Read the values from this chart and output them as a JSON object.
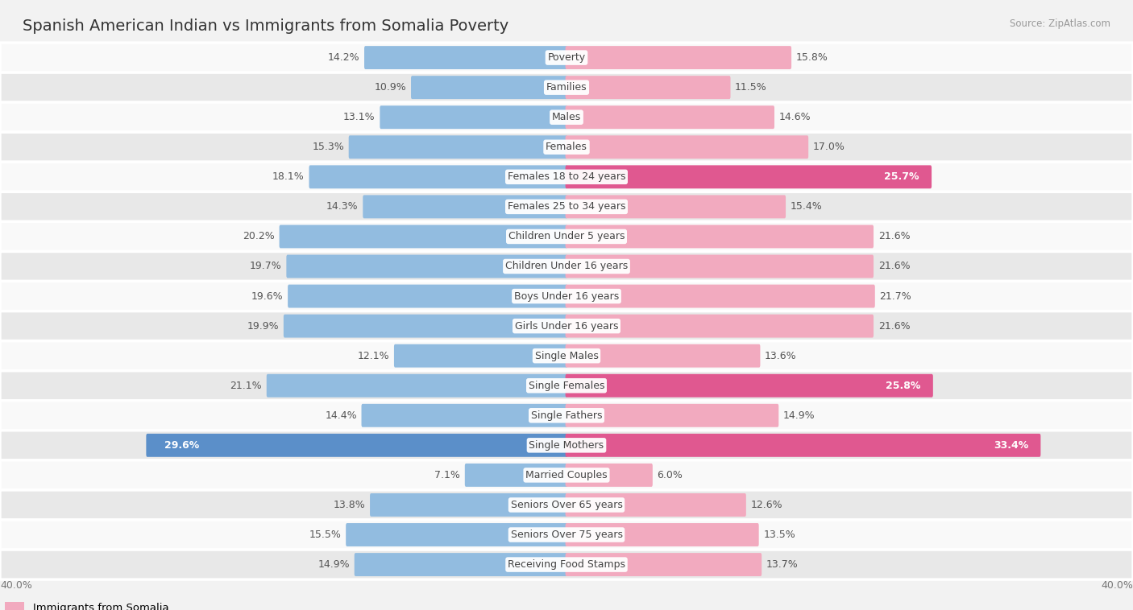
{
  "title": "Spanish American Indian vs Immigrants from Somalia Poverty",
  "source": "Source: ZipAtlas.com",
  "categories": [
    "Poverty",
    "Families",
    "Males",
    "Females",
    "Females 18 to 24 years",
    "Females 25 to 34 years",
    "Children Under 5 years",
    "Children Under 16 years",
    "Boys Under 16 years",
    "Girls Under 16 years",
    "Single Males",
    "Single Females",
    "Single Fathers",
    "Single Mothers",
    "Married Couples",
    "Seniors Over 65 years",
    "Seniors Over 75 years",
    "Receiving Food Stamps"
  ],
  "left_values": [
    14.2,
    10.9,
    13.1,
    15.3,
    18.1,
    14.3,
    20.2,
    19.7,
    19.6,
    19.9,
    12.1,
    21.1,
    14.4,
    29.6,
    7.1,
    13.8,
    15.5,
    14.9
  ],
  "right_values": [
    15.8,
    11.5,
    14.6,
    17.0,
    25.7,
    15.4,
    21.6,
    21.6,
    21.7,
    21.6,
    13.6,
    25.8,
    14.9,
    33.4,
    6.0,
    12.6,
    13.5,
    13.7
  ],
  "max_val": 40.0,
  "left_color": "#92bce0",
  "right_color": "#f2aabf",
  "highlight_left_color": "#5b8fc9",
  "highlight_right_color": "#e05890",
  "bar_height": 0.62,
  "background_color": "#f2f2f2",
  "row_bg_light": "#f9f9f9",
  "row_bg_dark": "#e8e8e8",
  "left_label": "Spanish American Indian",
  "right_label": "Immigrants from Somalia",
  "label_fontsize": 9.5,
  "title_fontsize": 14,
  "value_fontsize": 9,
  "category_fontsize": 9
}
